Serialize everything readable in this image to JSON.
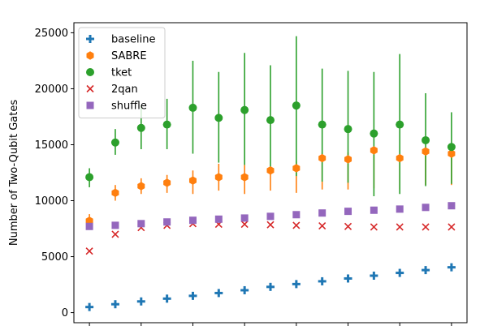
{
  "chart_data": {
    "type": "scatter",
    "title": "",
    "xlabel": "",
    "ylabel": "Number of Two-Qubit Gates",
    "ylim": [
      -900,
      25900
    ],
    "yticks": [
      0,
      5000,
      10000,
      15000,
      20000,
      25000
    ],
    "ytick_labels": [
      "0",
      "5000",
      "10000",
      "15000",
      "20000",
      "25000"
    ],
    "x": [
      0,
      1,
      2,
      3,
      4,
      5,
      6,
      7,
      8,
      9,
      10,
      11,
      12,
      13,
      14
    ],
    "xlim": [
      -0.6,
      14.6
    ],
    "xticks": [
      0,
      2,
      4,
      6,
      8,
      10,
      12,
      14
    ],
    "legend_position": "top-left",
    "grid": false,
    "series": [
      {
        "name": "baseline",
        "marker": "plus",
        "color": "#1f77b4",
        "values": [
          500,
          750,
          1000,
          1250,
          1500,
          1750,
          2000,
          2300,
          2550,
          2800,
          3050,
          3300,
          3550,
          3800,
          4050
        ]
      },
      {
        "name": "SABRE",
        "marker": "hexagon",
        "color": "#ff7f0e",
        "values": [
          8200,
          10700,
          11300,
          11600,
          11800,
          12100,
          12100,
          12700,
          12900,
          13800,
          13700,
          14500,
          13800,
          14400,
          14200
        ],
        "err_low": [
          7700,
          10000,
          10600,
          10700,
          10600,
          10900,
          10600,
          10900,
          10700,
          11000,
          11000,
          11100,
          11000,
          11400,
          11400
        ],
        "err_high": [
          8800,
          11400,
          12000,
          12300,
          12700,
          13300,
          13200,
          13000,
          13500,
          14300,
          14300,
          14700,
          14000,
          14700,
          14500
        ]
      },
      {
        "name": "tket",
        "marker": "circle",
        "color": "#2ca02c",
        "values": [
          12100,
          15200,
          16500,
          16800,
          18300,
          17400,
          18100,
          17200,
          18500,
          16800,
          16400,
          16000,
          16800,
          15400,
          14800
        ],
        "err_low": [
          11200,
          14100,
          14600,
          14600,
          14200,
          13400,
          13200,
          12600,
          12200,
          11700,
          11600,
          10400,
          10600,
          11300,
          11500
        ],
        "err_high": [
          12900,
          16400,
          18500,
          19100,
          22500,
          21500,
          23200,
          22100,
          24700,
          21800,
          21600,
          21500,
          23100,
          19600,
          17900
        ]
      },
      {
        "name": "2qan",
        "marker": "x",
        "color": "#d62728",
        "values": [
          5500,
          7000,
          7600,
          7800,
          7950,
          7900,
          7900,
          7850,
          7800,
          7750,
          7700,
          7650,
          7650,
          7650,
          7650
        ]
      },
      {
        "name": "shuffle",
        "marker": "square",
        "color": "#9467bd",
        "values": [
          7700,
          7800,
          7950,
          8100,
          8250,
          8350,
          8450,
          8600,
          8750,
          8900,
          9050,
          9150,
          9250,
          9400,
          9550
        ]
      }
    ]
  }
}
